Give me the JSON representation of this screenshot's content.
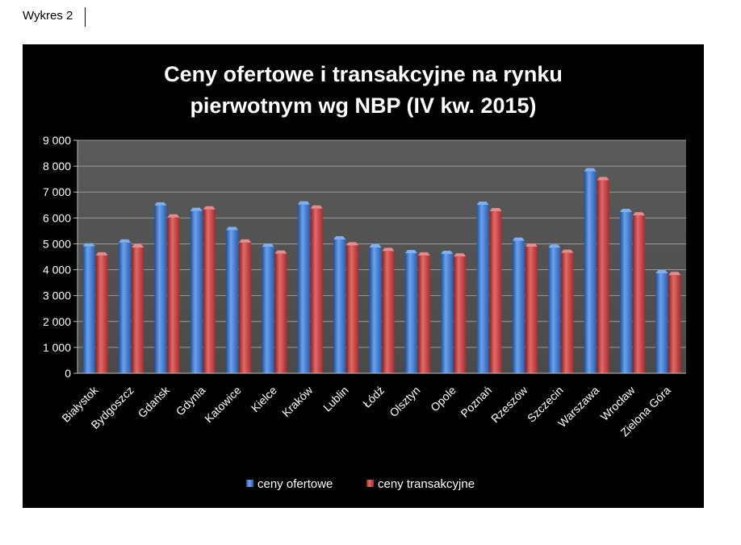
{
  "document": {
    "label": "Wykres 2"
  },
  "chart_data": {
    "type": "bar",
    "title": "Ceny ofertowe i transakcyjne na rynku pierwotnym wg NBP (IV kw. 2015)",
    "title_lines": [
      "Ceny ofertowe i transakcyjne na rynku",
      "pierwotnym wg NBP (IV kw. 2015)"
    ],
    "xlabel": "",
    "ylabel": "",
    "ylim": [
      0,
      9000
    ],
    "yticks": [
      0,
      1000,
      2000,
      3000,
      4000,
      5000,
      6000,
      7000,
      8000,
      9000
    ],
    "ytick_labels": [
      "0",
      "1 000",
      "2 000",
      "3 000",
      "4 000",
      "5 000",
      "6 000",
      "7 000",
      "8 000",
      "9 000"
    ],
    "grid": true,
    "legend_position": "bottom",
    "categories": [
      "Białystok",
      "Bydgoszcz",
      "Gdańsk",
      "Gdynia",
      "Katowice",
      "Kielce",
      "Kraków",
      "Lublin",
      "Łódź",
      "Olsztyn",
      "Opole",
      "Poznań",
      "Rzeszów",
      "Szczecin",
      "Warszawa",
      "Wrocław",
      "Zielona Góra"
    ],
    "series": [
      {
        "name": "ceny ofertowe",
        "color": "#3a78d4",
        "values": [
          4900,
          5050,
          6480,
          6270,
          5530,
          4880,
          6520,
          5170,
          4860,
          4640,
          4610,
          6510,
          5120,
          4850,
          7800,
          6230,
          3860
        ]
      },
      {
        "name": "ceny transakcyjne",
        "color": "#cc3b3b",
        "values": [
          4550,
          4860,
          6020,
          6330,
          5050,
          4620,
          6360,
          4940,
          4720,
          4550,
          4510,
          6260,
          4890,
          4650,
          7460,
          6100,
          3790
        ]
      }
    ]
  }
}
